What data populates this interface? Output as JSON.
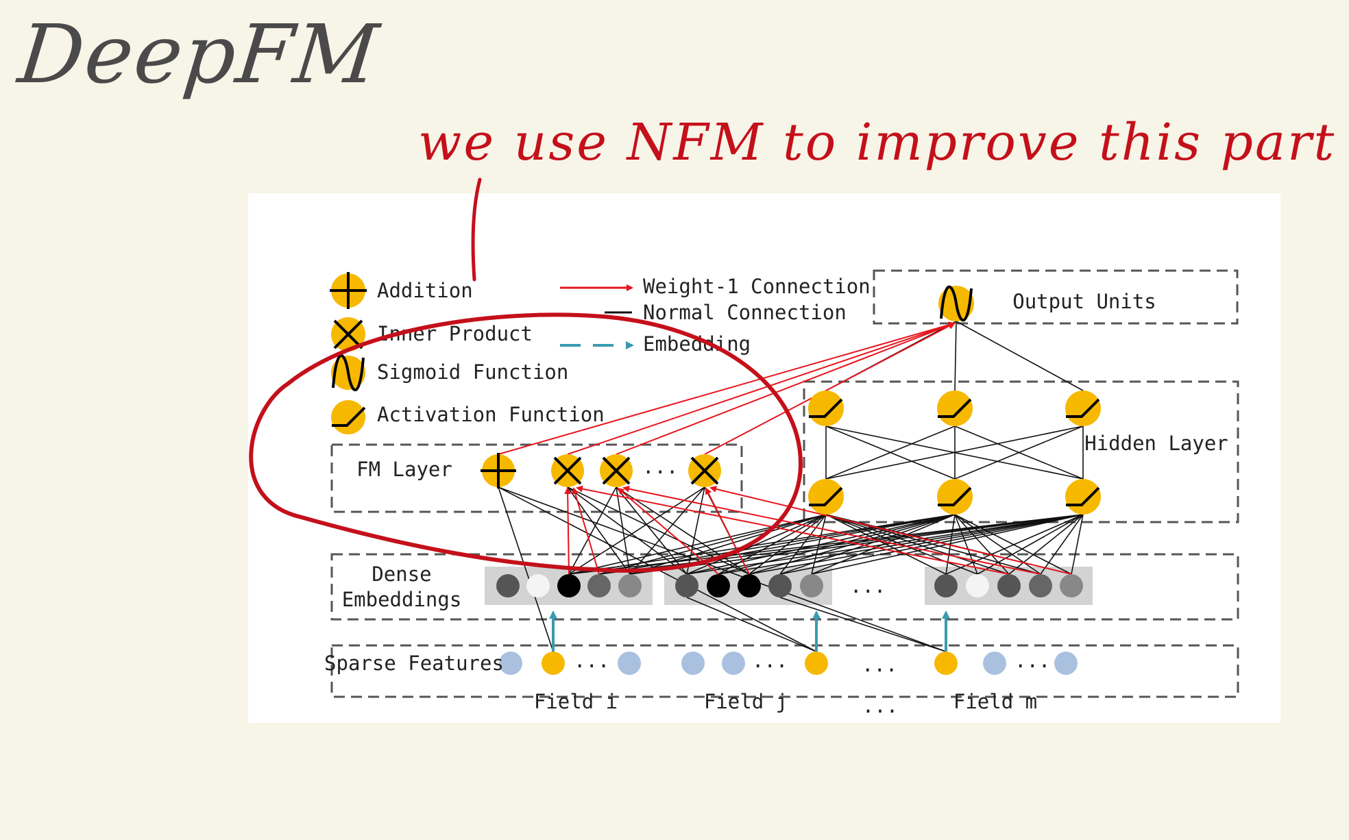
{
  "title": "DeepFM",
  "annotation": "we use NFM to improve this part",
  "legend": {
    "addition": "Addition",
    "inner_product": "Inner Product",
    "sigmoid": "Sigmoid Function",
    "activation": "Activation Function",
    "weight1": "Weight-1 Connection",
    "normal": "Normal Connection",
    "embedding": "Embedding"
  },
  "layers": {
    "output": "Output Units",
    "hidden": "Hidden Layer",
    "fm": "FM Layer",
    "dense_line1": "Dense",
    "dense_line2": "Embeddings",
    "sparse": "Sparse Features"
  },
  "fields": [
    "Field i",
    "Field j",
    "Field m"
  ],
  "ellipsis": "...",
  "colors": {
    "node": "#f7b800",
    "red": "#e8141c",
    "embed": "#3a9bb0",
    "sparse": "#a9c1de",
    "ink": "#c4101a"
  }
}
